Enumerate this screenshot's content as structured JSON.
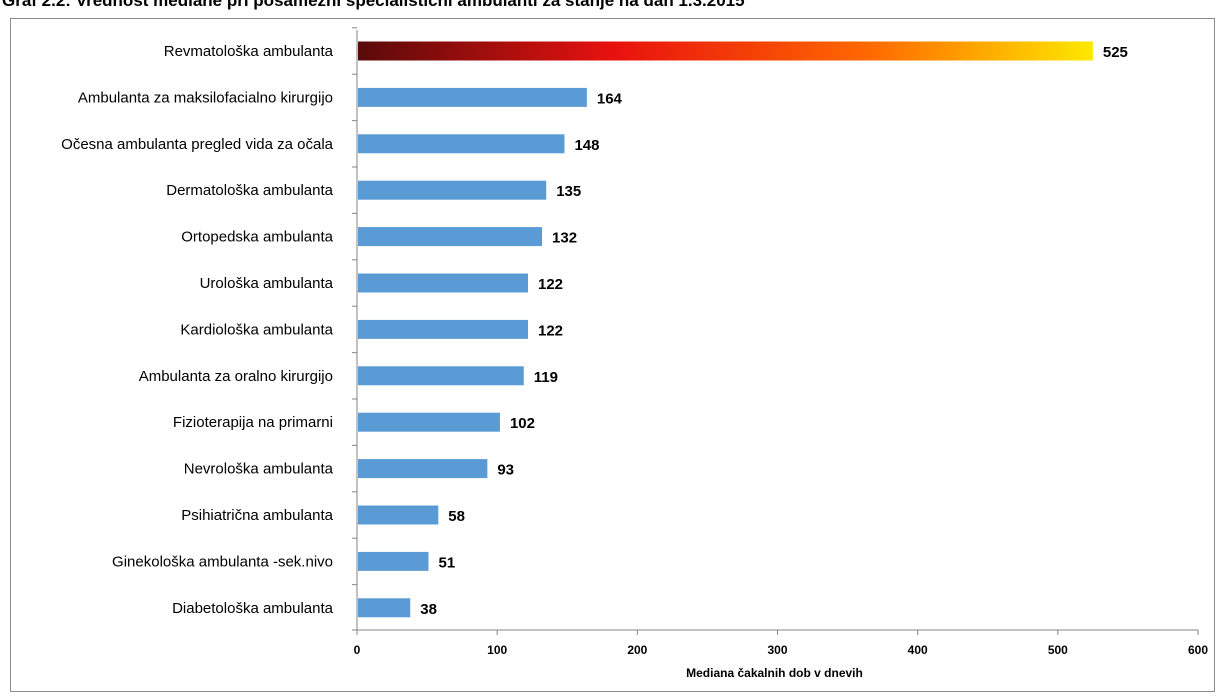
{
  "title": "Graf 2.2: Vrednost mediane pri posamezni specialistični ambulanti za stanje na dan 1.3.2015",
  "chart_data": {
    "type": "bar",
    "orientation": "horizontal",
    "categories": [
      "Revmatološka ambulanta",
      "Ambulanta za maksilofacialno kirurgijo",
      "Očesna ambulanta  pregled vida za očala",
      "Dermatološka ambulanta",
      "Ortopedska ambulanta",
      "Urološka ambulanta",
      "Kardiološka ambulanta",
      "Ambulanta za oralno kirurgijo",
      "Fizioterapija na primarni",
      "Nevrološka ambulanta",
      "Psihiatrična ambulanta",
      "Ginekološka ambulanta -sek.nivo",
      "Diabetološka ambulanta"
    ],
    "values": [
      525,
      164,
      148,
      135,
      132,
      122,
      122,
      119,
      102,
      93,
      58,
      51,
      38
    ],
    "xlabel": "Mediana čakalnih dob v dnevih",
    "xlim": [
      0,
      600
    ],
    "xticks": [
      0,
      100,
      200,
      300,
      400,
      500,
      600
    ],
    "grid": false,
    "legend": "none",
    "bar_color": "#5b9bd5",
    "highlight_gradient": [
      "#5a0a0a",
      "#e8120e",
      "#ff6a00",
      "#fde800"
    ]
  }
}
